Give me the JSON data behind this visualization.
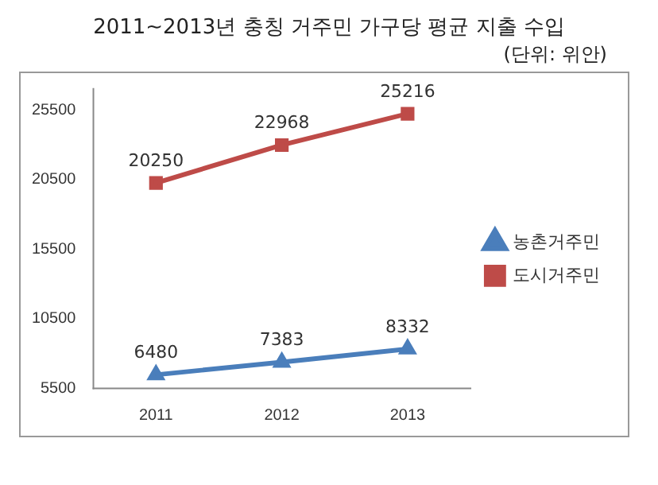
{
  "chart_data": {
    "type": "line",
    "title": "2011~2013년 충칭 거주민 가구당 평균 지출 수입",
    "subtitle": "(단위: 위안)",
    "categories": [
      "2011",
      "2012",
      "2013"
    ],
    "series": [
      {
        "name": "농촌거주민",
        "color": "#4a7ebb",
        "values": [
          6480,
          7383,
          8332
        ],
        "marker": "triangle"
      },
      {
        "name": "도시거주민",
        "color": "#be4b48",
        "values": [
          20250,
          22968,
          25216
        ],
        "marker": "square"
      }
    ],
    "ylim": [
      5500,
      27000
    ],
    "yticks": [
      5500,
      10500,
      15500,
      20500,
      25500
    ],
    "grid": false,
    "legend": "right",
    "data_labels": true,
    "line_style": "solid"
  }
}
